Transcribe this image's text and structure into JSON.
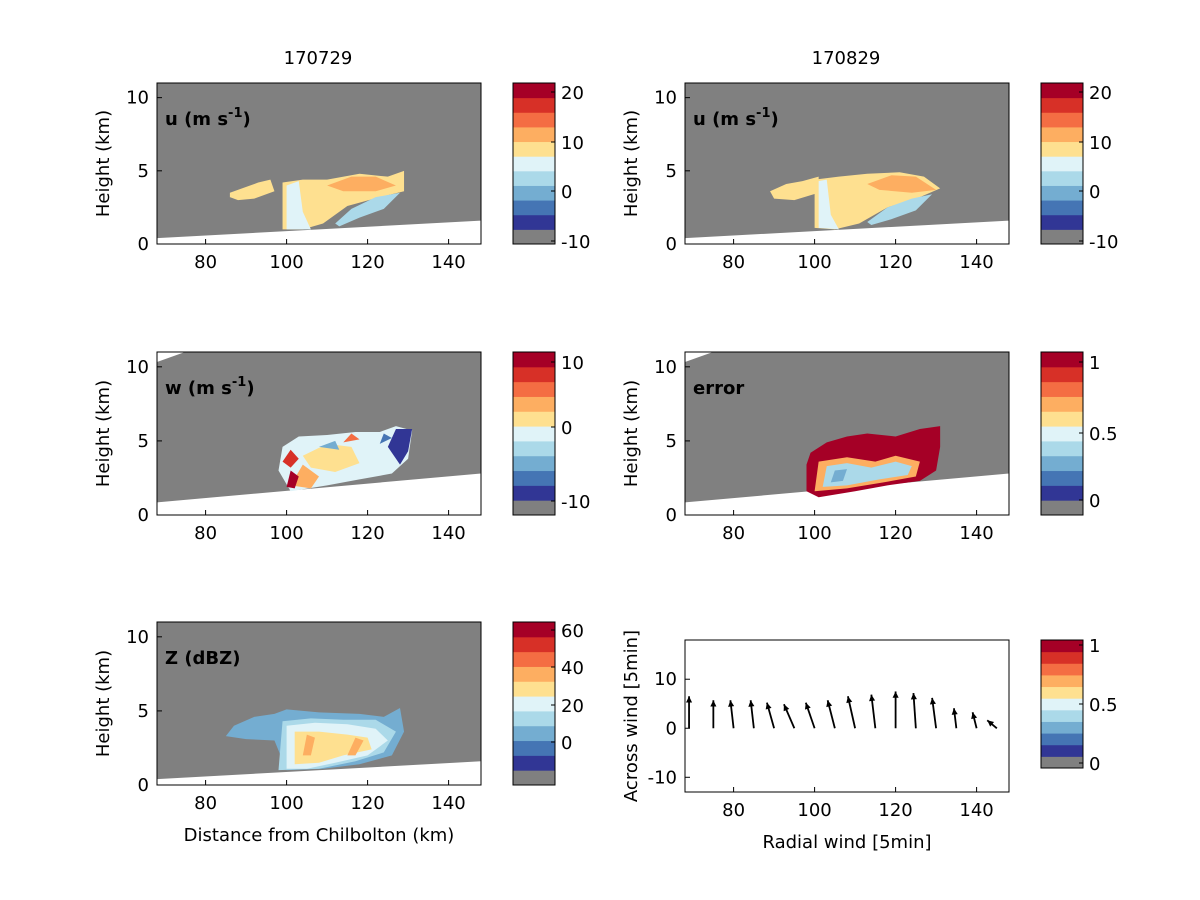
{
  "columns": [
    {
      "title": "170729"
    },
    {
      "title": "170829"
    }
  ],
  "colormap": [
    "#808080",
    "#313695",
    "#4575b4",
    "#74add1",
    "#abd9e9",
    "#e0f3f8",
    "#fee090",
    "#fdae61",
    "#f46d43",
    "#d73027",
    "#a50026"
  ],
  "colors": {
    "background_fill": "#808080",
    "terrain": "#ffffff",
    "axis": "#000000"
  },
  "chart_data": [
    {
      "type": "heatmap",
      "id": "p1",
      "panel_label": "u (m s",
      "panel_label_sup": "-1",
      "panel_label_end": ")",
      "ylabel": "Height (km)",
      "xlabel": "",
      "xlim": [
        68,
        148
      ],
      "ylim": [
        0,
        11
      ],
      "xticks": [
        "80",
        "100",
        "120",
        "140"
      ],
      "yticks": [
        "0",
        "5",
        "10"
      ],
      "colorbar": {
        "ticks": [
          "20",
          "10",
          "0",
          "-10"
        ]
      }
    },
    {
      "type": "heatmap",
      "id": "p2",
      "panel_label": "u (m s",
      "panel_label_sup": "-1",
      "panel_label_end": ")",
      "ylabel": "Height (km)",
      "xlabel": "",
      "xlim": [
        68,
        148
      ],
      "ylim": [
        0,
        11
      ],
      "xticks": [
        "80",
        "100",
        "120",
        "140"
      ],
      "yticks": [
        "0",
        "5",
        "10"
      ],
      "colorbar": {
        "ticks": [
          "20",
          "10",
          "0",
          "-10"
        ]
      }
    },
    {
      "type": "heatmap",
      "id": "p3",
      "panel_label": "w (m s",
      "panel_label_sup": "-1",
      "panel_label_end": ")",
      "ylabel": "Height (km)",
      "xlabel": "",
      "xlim": [
        68,
        148
      ],
      "ylim": [
        0,
        11
      ],
      "xticks": [
        "80",
        "100",
        "120",
        "140"
      ],
      "yticks": [
        "0",
        "5",
        "10"
      ],
      "colorbar": {
        "ticks": [
          "10",
          "0",
          "-10"
        ]
      }
    },
    {
      "type": "heatmap",
      "id": "p4",
      "panel_label": "error",
      "panel_label_sup": "",
      "panel_label_end": "",
      "ylabel": "Height (km)",
      "xlabel": "",
      "xlim": [
        68,
        148
      ],
      "ylim": [
        0,
        11
      ],
      "xticks": [
        "80",
        "100",
        "120",
        "140"
      ],
      "yticks": [
        "0",
        "5",
        "10"
      ],
      "colorbar": {
        "ticks": [
          "1",
          "0.5",
          "0"
        ]
      }
    },
    {
      "type": "heatmap",
      "id": "p5",
      "panel_label": "Z (dBZ)",
      "panel_label_sup": "",
      "panel_label_end": "",
      "ylabel": "Height (km)",
      "xlabel": "Distance from Chilbolton (km)",
      "xlim": [
        68,
        148
      ],
      "ylim": [
        0,
        11
      ],
      "xticks": [
        "80",
        "100",
        "120",
        "140"
      ],
      "yticks": [
        "0",
        "5",
        "10"
      ],
      "colorbar": {
        "ticks": [
          "60",
          "40",
          "20",
          "0"
        ]
      }
    },
    {
      "type": "scatter",
      "id": "p6",
      "panel_label": "",
      "panel_label_sup": "",
      "panel_label_end": "",
      "ylabel": "Across wind [5min]",
      "xlabel": "Radial wind [5min]",
      "xlim": [
        68,
        148
      ],
      "ylim": [
        -13,
        18
      ],
      "xticks": [
        "80",
        "100",
        "120",
        "140"
      ],
      "yticks": [
        "10",
        "0",
        "-10"
      ],
      "colorbar": {
        "ticks": [
          "1",
          "0.5",
          "0"
        ]
      },
      "arrows": [
        {
          "x": 69,
          "u": 0.0,
          "v": 4.0
        },
        {
          "x": 75,
          "u": 0.0,
          "v": 3.5
        },
        {
          "x": 80,
          "u": -0.4,
          "v": 3.5
        },
        {
          "x": 85,
          "u": -0.4,
          "v": 3.5
        },
        {
          "x": 90,
          "u": -0.9,
          "v": 3.2
        },
        {
          "x": 95,
          "u": -1.3,
          "v": 3.0
        },
        {
          "x": 100,
          "u": -1.1,
          "v": 3.2
        },
        {
          "x": 105,
          "u": -0.9,
          "v": 3.5
        },
        {
          "x": 110,
          "u": -0.9,
          "v": 4.0
        },
        {
          "x": 115,
          "u": -0.5,
          "v": 4.2
        },
        {
          "x": 120,
          "u": 0.0,
          "v": 4.6
        },
        {
          "x": 125,
          "u": -0.3,
          "v": 4.4
        },
        {
          "x": 130,
          "u": -0.5,
          "v": 3.8
        },
        {
          "x": 135,
          "u": -0.3,
          "v": 2.5
        },
        {
          "x": 140,
          "u": -0.5,
          "v": 2.0
        },
        {
          "x": 145,
          "u": -1.2,
          "v": 1.0
        }
      ]
    }
  ]
}
